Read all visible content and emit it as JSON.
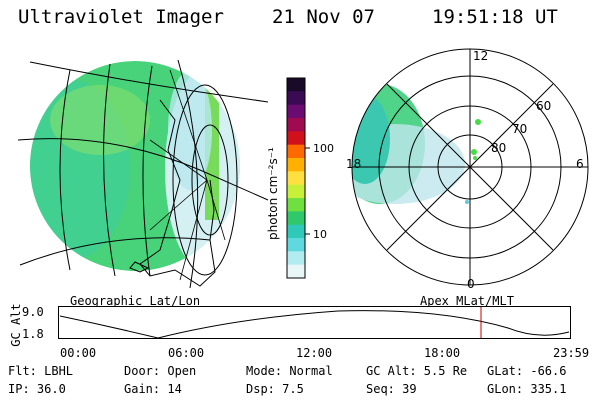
{
  "header": {
    "instrument": "Ultraviolet Imager",
    "date": "21 Nov 07",
    "time": "19:51:18 UT"
  },
  "colorbar": {
    "unit_label": "photon cm⁻²s⁻¹",
    "ticks": [
      "100",
      "10"
    ],
    "colors": [
      "#1a0a2a",
      "#3b0a55",
      "#6a0c72",
      "#a00a50",
      "#d0101a",
      "#ff6a00",
      "#ffb000",
      "#ffe040",
      "#c8f03a",
      "#70e040",
      "#30c86a",
      "#30c8b8",
      "#60d8e0",
      "#b0ecf0",
      "#e8f6f8"
    ]
  },
  "left_map": {
    "projection_label": "Geographic Lat/Lon"
  },
  "polar_plot": {
    "label": "Apex MLat/MLT",
    "mlt_labels": [
      "12",
      "18",
      "6",
      "0"
    ],
    "lat_labels": [
      "60",
      "70",
      "80"
    ]
  },
  "altitude_strip": {
    "axis_label": "GC Alt",
    "y_ticks": [
      "9.0",
      "1.8"
    ],
    "x_ticks": [
      "00:00",
      "06:00",
      "12:00",
      "18:00",
      "23:59"
    ],
    "marker_color": "#cc0000"
  },
  "footer": {
    "flt": "Flt: LBHL",
    "ip": "IP: 36.0",
    "door": "Door: Open",
    "gain": "Gain: 14",
    "mode": "Mode: Normal",
    "dsp": "Dsp:     7.5",
    "gc_alt": "GC Alt: 5.5 Re",
    "seq": "Seq: 39",
    "glat": "GLat: -66.6",
    "glon": "GLon: 335.1"
  }
}
